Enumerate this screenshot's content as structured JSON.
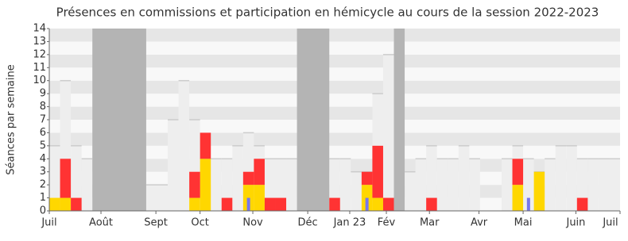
{
  "chart_data": {
    "type": "bar",
    "title": "Présences en commissions et participation en hémicycle au cours de la session 2022-2023",
    "ylabel": "Séances par semaine",
    "ylim": [
      0,
      14
    ],
    "yticks": [
      0,
      1,
      2,
      3,
      4,
      5,
      6,
      7,
      8,
      9,
      10,
      11,
      12,
      13,
      14
    ],
    "xlim": [
      0,
      53
    ],
    "xticks": [
      {
        "value": 0,
        "label": "Juil"
      },
      {
        "value": 4.8,
        "label": "Août"
      },
      {
        "value": 9.9,
        "label": "Sept"
      },
      {
        "value": 14,
        "label": "Oct"
      },
      {
        "value": 18.9,
        "label": "Nov"
      },
      {
        "value": 24,
        "label": "Déc"
      },
      {
        "value": 27.9,
        "label": "Jan 23"
      },
      {
        "value": 31.3,
        "label": "Fév"
      },
      {
        "value": 35.3,
        "label": "Mar"
      },
      {
        "value": 39.9,
        "label": "Avr"
      },
      {
        "value": 44,
        "label": "Mai"
      },
      {
        "value": 48.9,
        "label": "Juin"
      },
      {
        "value": 53,
        "label": "Juil"
      }
    ],
    "x": [
      0,
      1,
      2,
      3,
      4,
      5,
      6,
      7,
      8,
      9,
      10,
      11,
      12,
      13,
      14,
      15,
      16,
      17,
      18,
      19,
      20,
      21,
      22,
      23,
      24,
      25,
      26,
      27,
      28,
      29,
      30,
      31,
      32,
      33,
      34,
      35,
      36,
      37,
      38,
      39,
      40,
      41,
      42,
      43,
      44,
      45,
      46,
      47,
      48,
      49,
      50,
      51,
      52
    ],
    "shaded_weeks": [
      [
        4,
        9
      ],
      [
        23,
        26
      ],
      [
        32,
        33
      ]
    ],
    "shade_color": "#b4b4b4",
    "background": {
      "color": "#eeeeee",
      "values": [
        5,
        10,
        5,
        4,
        0,
        0,
        0,
        0,
        0,
        2,
        2,
        7,
        10,
        7,
        4,
        4,
        4,
        5,
        6,
        5,
        4,
        4,
        4,
        0,
        0,
        0,
        4,
        4,
        3,
        3,
        9,
        12,
        0,
        3,
        4,
        5,
        4,
        4,
        5,
        4,
        0,
        0,
        4,
        5,
        4,
        3,
        4,
        5,
        5,
        4,
        4,
        4,
        4
      ]
    },
    "series": [
      {
        "color": "#ffd700",
        "values": [
          1,
          1,
          0,
          0,
          0,
          0,
          0,
          0,
          0,
          0,
          0,
          0,
          0,
          1,
          4,
          0,
          0,
          0,
          2,
          2,
          0,
          0,
          0,
          0,
          0,
          0,
          0,
          0,
          0,
          2,
          1,
          0,
          0,
          0,
          0,
          0,
          0,
          0,
          0,
          0,
          0,
          0,
          0,
          2,
          0,
          3,
          0,
          0,
          0,
          0,
          0,
          0,
          0
        ]
      },
      {
        "color": "#ff3333",
        "values": [
          0,
          3,
          1,
          0,
          0,
          0,
          0,
          0,
          0,
          0,
          0,
          0,
          0,
          2,
          2,
          0,
          1,
          0,
          1,
          2,
          1,
          1,
          0,
          0,
          0,
          0,
          1,
          0,
          0,
          1,
          4,
          1,
          0,
          0,
          0,
          1,
          0,
          0,
          0,
          0,
          0,
          0,
          0,
          2,
          0,
          0,
          0,
          0,
          0,
          1,
          0,
          0,
          0
        ]
      },
      {
        "color": "#7777ee",
        "overlay": true,
        "values": [
          0,
          0,
          0,
          0,
          0,
          0,
          0,
          0,
          0,
          0,
          0,
          0,
          0,
          0,
          0,
          0,
          0,
          0,
          1,
          0,
          0,
          0,
          0,
          0,
          0,
          0,
          0,
          0,
          0,
          1,
          0,
          0,
          0,
          0,
          0,
          0,
          0,
          0,
          0,
          0,
          0,
          0,
          0,
          0,
          1,
          0,
          0,
          0,
          0,
          0,
          0,
          0,
          0
        ]
      }
    ]
  }
}
